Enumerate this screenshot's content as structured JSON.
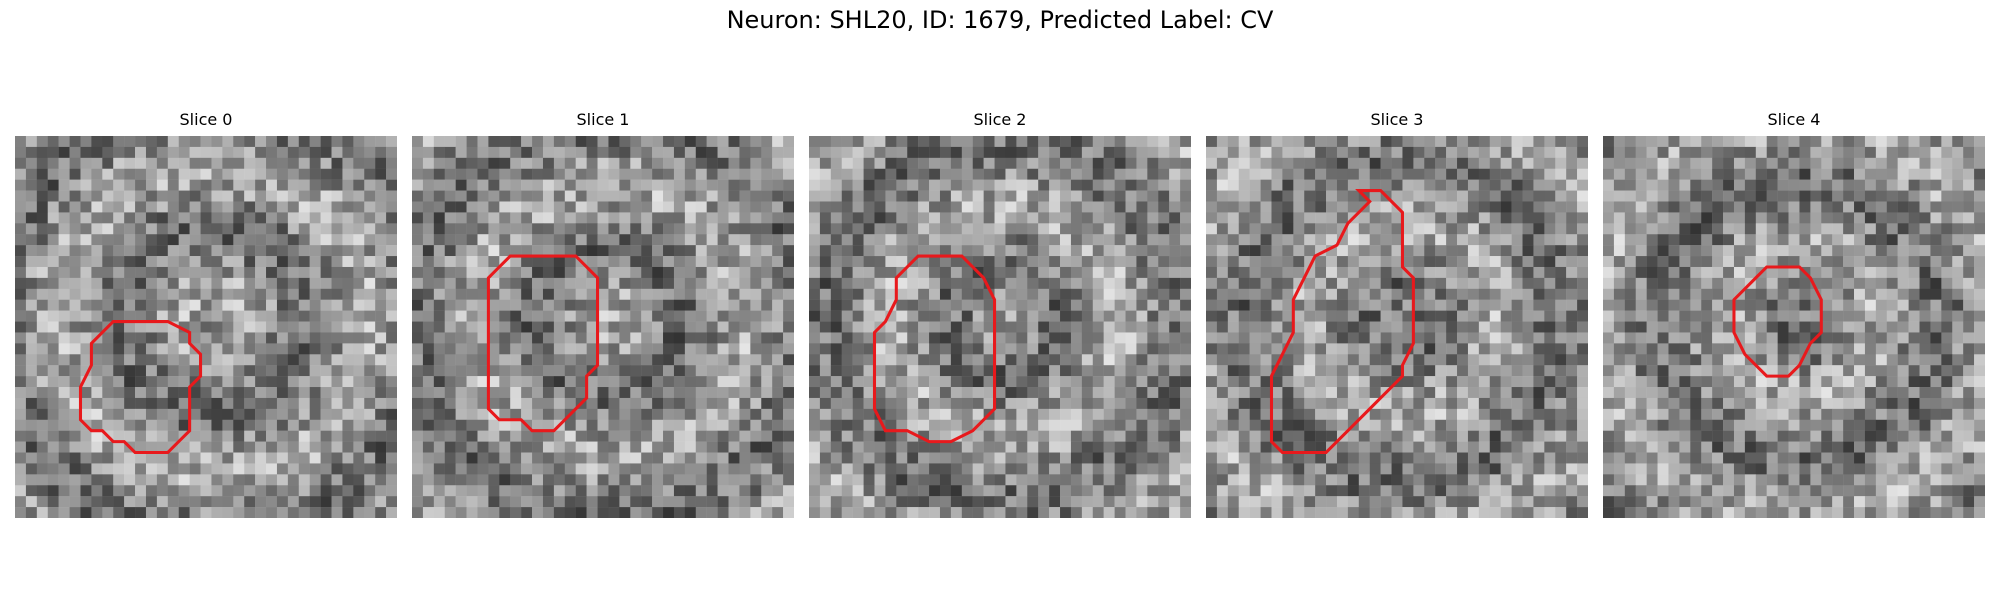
{
  "figure": {
    "title": "Neuron: SHL20, ID: 1679, Predicted Label: CV"
  },
  "panels": [
    {
      "label": "Slice 0",
      "seed": 17,
      "contour_color": "#e8191c",
      "contour": [
        [
          12,
          17
        ],
        [
          14,
          17
        ],
        [
          16,
          18
        ],
        [
          16,
          19
        ],
        [
          17,
          20
        ],
        [
          17,
          22
        ],
        [
          16,
          23
        ],
        [
          16,
          27
        ],
        [
          15,
          28
        ],
        [
          14,
          29
        ],
        [
          11,
          29
        ],
        [
          10,
          28
        ],
        [
          9,
          28
        ],
        [
          8,
          27
        ],
        [
          7,
          27
        ],
        [
          6,
          26
        ],
        [
          6,
          23
        ],
        [
          7,
          21
        ],
        [
          7,
          19
        ],
        [
          8,
          18
        ],
        [
          9,
          17
        ]
      ]
    },
    {
      "label": "Slice 1",
      "seed": 29,
      "contour_color": "#e8191c",
      "contour": [
        [
          12,
          11
        ],
        [
          15,
          11
        ],
        [
          16,
          12
        ],
        [
          17,
          13
        ],
        [
          17,
          21
        ],
        [
          16,
          22
        ],
        [
          16,
          24
        ],
        [
          15,
          25
        ],
        [
          14,
          26
        ],
        [
          13,
          27
        ],
        [
          11,
          27
        ],
        [
          10,
          26
        ],
        [
          8,
          26
        ],
        [
          7,
          25
        ],
        [
          7,
          24
        ],
        [
          7,
          22
        ],
        [
          7,
          13
        ],
        [
          8,
          12
        ],
        [
          9,
          11
        ]
      ]
    },
    {
      "label": "Slice 2",
      "seed": 43,
      "contour_color": "#e8191c",
      "contour": [
        [
          10,
          11
        ],
        [
          14,
          11
        ],
        [
          15,
          12
        ],
        [
          16,
          13
        ],
        [
          17,
          15
        ],
        [
          17,
          20
        ],
        [
          17,
          25
        ],
        [
          16,
          26
        ],
        [
          15,
          27
        ],
        [
          13,
          28
        ],
        [
          11,
          28
        ],
        [
          9,
          27
        ],
        [
          7,
          27
        ],
        [
          6,
          25
        ],
        [
          6,
          18
        ],
        [
          7,
          17
        ],
        [
          8,
          15
        ],
        [
          8,
          13
        ],
        [
          9,
          12
        ]
      ]
    },
    {
      "label": "Slice 3",
      "seed": 61,
      "contour_color": "#e8191c",
      "contour": [
        [
          14,
          5
        ],
        [
          16,
          5
        ],
        [
          17,
          6
        ],
        [
          18,
          7
        ],
        [
          18,
          12
        ],
        [
          19,
          13
        ],
        [
          19,
          19
        ],
        [
          18,
          21
        ],
        [
          18,
          22
        ],
        [
          16,
          24
        ],
        [
          15,
          25
        ],
        [
          13,
          27
        ],
        [
          11,
          29
        ],
        [
          7,
          29
        ],
        [
          6,
          28
        ],
        [
          6,
          24
        ],
        [
          6,
          22
        ],
        [
          7,
          20
        ],
        [
          8,
          18
        ],
        [
          8,
          15
        ],
        [
          9,
          13
        ],
        [
          10,
          11
        ],
        [
          12,
          10
        ],
        [
          13,
          8
        ],
        [
          14,
          7
        ],
        [
          15,
          6
        ]
      ]
    },
    {
      "label": "Slice 4",
      "seed": 83,
      "contour_color": "#e8191c",
      "contour": [
        [
          15,
          12
        ],
        [
          18,
          12
        ],
        [
          19,
          13
        ],
        [
          20,
          15
        ],
        [
          20,
          18
        ],
        [
          19,
          19
        ],
        [
          18,
          21
        ],
        [
          17,
          22
        ],
        [
          15,
          22
        ],
        [
          14,
          21
        ],
        [
          13,
          20
        ],
        [
          12,
          18
        ],
        [
          12,
          15
        ],
        [
          13,
          14
        ],
        [
          14,
          13
        ]
      ]
    }
  ]
}
